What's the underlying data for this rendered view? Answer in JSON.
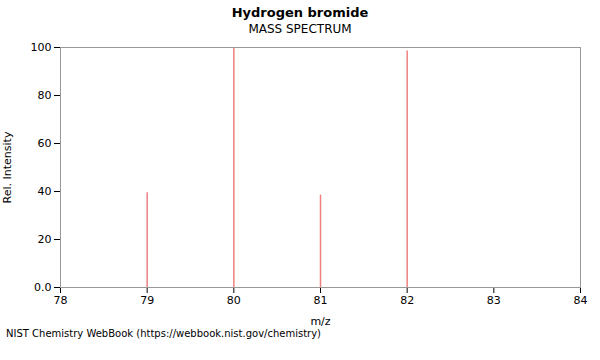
{
  "chart_data": {
    "type": "stem",
    "title": "Hydrogen bromide",
    "subtitle": "MASS SPECTRUM",
    "xlabel": "m/z",
    "ylabel": "Rel. Intensity",
    "annotation": "NIST Chemistry WebBook (https://webbook.nist.gov/chemistry)",
    "x": [
      79,
      80,
      81,
      82
    ],
    "values": [
      39.5,
      100.0,
      38.5,
      98.5
    ],
    "color": "#f08080",
    "xlim": [
      78,
      84
    ],
    "ylim": [
      0,
      100
    ],
    "xticks": [
      78,
      79,
      80,
      81,
      82,
      83,
      84
    ],
    "yticks": [
      {
        "value": 0,
        "label": "0.0"
      },
      20,
      40,
      60,
      80,
      100
    ],
    "grid": false
  }
}
